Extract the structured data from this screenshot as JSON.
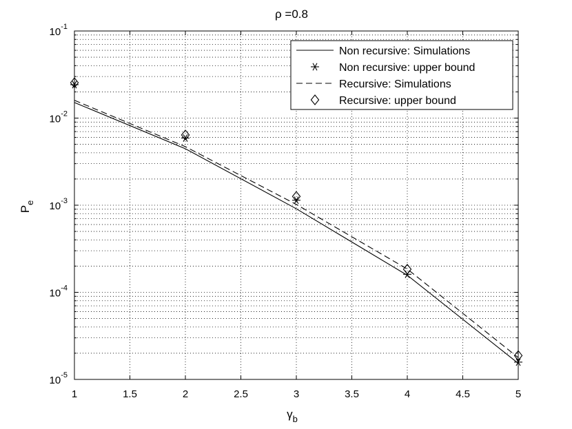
{
  "chart_data": {
    "type": "line",
    "title": "ρ =0.8",
    "xlabel": {
      "main": "γ",
      "sub": "b"
    },
    "ylabel": {
      "main": "P",
      "sub": "e"
    },
    "xlim": [
      1,
      5
    ],
    "ylim": [
      1e-05,
      0.1
    ],
    "yscale": "log",
    "grid": true,
    "legend_position": "top-right",
    "x_ticks": [
      1,
      1.5,
      2,
      2.5,
      3,
      3.5,
      4,
      4.5,
      5
    ],
    "x_tick_labels": [
      "1",
      "1.5",
      "2",
      "2.5",
      "3",
      "3.5",
      "4",
      "4.5",
      "5"
    ],
    "y_ticks": [
      {
        "value": 1e-05,
        "base": "10",
        "exp": "-5"
      },
      {
        "value": 0.0001,
        "base": "10",
        "exp": "-4"
      },
      {
        "value": 0.001,
        "base": "10",
        "exp": "-3"
      },
      {
        "value": 0.01,
        "base": "10",
        "exp": "-2"
      },
      {
        "value": 0.1,
        "base": "10",
        "exp": "-1"
      }
    ],
    "series": [
      {
        "name": "Non recursive: Simulations",
        "style": "solid-line",
        "x": [
          1,
          2,
          3,
          4,
          5
        ],
        "y": [
          0.0151,
          0.00445,
          0.00091,
          0.000157,
          1.53e-05
        ]
      },
      {
        "name": "Non recursive: upper bound",
        "style": "asterisk-marker",
        "x": [
          1,
          2,
          3,
          4,
          5
        ],
        "y": [
          0.0242,
          0.0059,
          0.00114,
          0.000161,
          1.58e-05
        ]
      },
      {
        "name": "Recursive: Simulations",
        "style": "dashed-line",
        "x": [
          1,
          2,
          3,
          4,
          5
        ],
        "y": [
          0.016,
          0.0047,
          0.00102,
          0.000185,
          1.78e-05
        ]
      },
      {
        "name": "Recursive: upper bound",
        "style": "diamond-marker",
        "x": [
          1,
          2,
          3,
          4,
          5
        ],
        "y": [
          0.0255,
          0.0064,
          0.00126,
          0.000184,
          1.88e-05
        ]
      }
    ]
  }
}
